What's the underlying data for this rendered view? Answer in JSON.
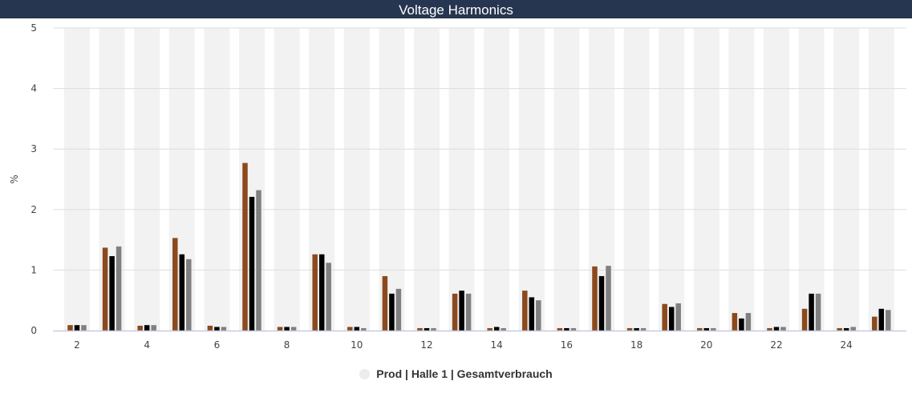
{
  "chart_data": {
    "type": "bar",
    "title": "Voltage Harmonics",
    "ylabel": "%",
    "xlabel": "",
    "ylim": [
      0,
      5
    ],
    "yticks": [
      0,
      1,
      2,
      3,
      4,
      5
    ],
    "categories": [
      2,
      3,
      4,
      5,
      6,
      7,
      8,
      9,
      10,
      11,
      12,
      13,
      14,
      15,
      16,
      17,
      18,
      19,
      20,
      21,
      22,
      23,
      24,
      25
    ],
    "xtick_labels": [
      2,
      4,
      6,
      8,
      10,
      12,
      14,
      16,
      18,
      20,
      22,
      24
    ],
    "series": [
      {
        "color": "#8b4a1e",
        "values": [
          0.09,
          1.37,
          0.08,
          1.53,
          0.08,
          2.77,
          0.06,
          1.26,
          0.06,
          0.9,
          0.04,
          0.61,
          0.04,
          0.66,
          0.04,
          1.06,
          0.04,
          0.44,
          0.04,
          0.29,
          0.04,
          0.36,
          0.04,
          0.23
        ]
      },
      {
        "color": "#000000",
        "values": [
          0.09,
          1.23,
          0.09,
          1.26,
          0.06,
          2.21,
          0.06,
          1.26,
          0.06,
          0.61,
          0.04,
          0.66,
          0.06,
          0.55,
          0.04,
          0.9,
          0.04,
          0.39,
          0.04,
          0.2,
          0.06,
          0.61,
          0.04,
          0.36
        ]
      },
      {
        "color": "#808080",
        "values": [
          0.09,
          1.39,
          0.09,
          1.18,
          0.06,
          2.32,
          0.06,
          1.12,
          0.04,
          0.69,
          0.04,
          0.61,
          0.04,
          0.5,
          0.04,
          1.07,
          0.04,
          0.45,
          0.04,
          0.29,
          0.06,
          0.61,
          0.06,
          0.34
        ]
      }
    ],
    "legend": {
      "label": "Prod | Halle 1 | Gesamtverbrauch",
      "position": "bottom-center"
    },
    "grid": true
  }
}
